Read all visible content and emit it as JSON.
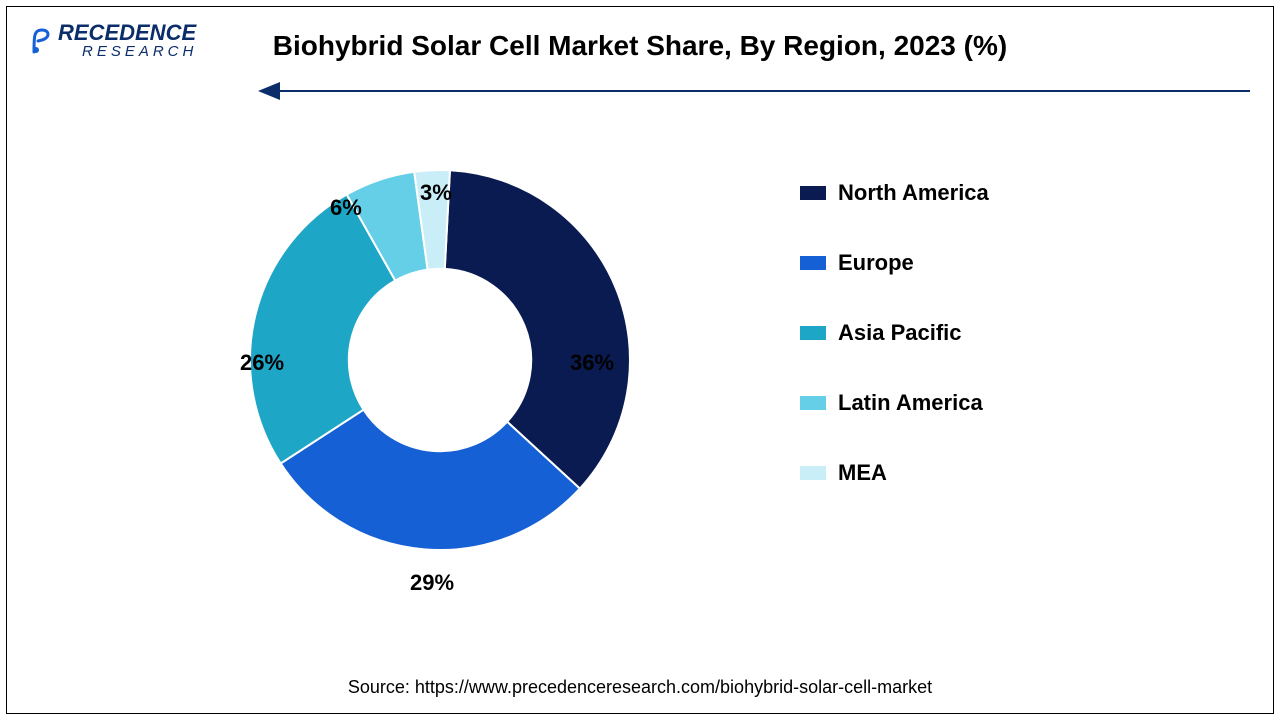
{
  "logo": {
    "main": "RECEDENCE",
    "sub": "RESEARCH",
    "accent_color": "#1560d4"
  },
  "title": "Biohybrid Solar Cell Market Share, By Region, 2023 (%)",
  "arrow_color": "#0b2e6a",
  "chart": {
    "type": "pie",
    "inner_radius_ratio": 0.48,
    "background_color": "#ffffff",
    "slices": [
      {
        "label": "North America",
        "value": 36,
        "color": "#0a1b52",
        "pct_label": "36%"
      },
      {
        "label": "Europe",
        "value": 29,
        "color": "#1560d4",
        "pct_label": "29%"
      },
      {
        "label": "Asia Pacific",
        "value": 26,
        "color": "#1ea6c6",
        "pct_label": "26%"
      },
      {
        "label": "Latin America",
        "value": 6,
        "color": "#65cfe8",
        "pct_label": "6%"
      },
      {
        "label": "MEA",
        "value": 3,
        "color": "#c9eef7",
        "pct_label": "3%"
      }
    ],
    "label_fontsize": 22,
    "label_fontweight": "bold",
    "label_color": "#000000"
  },
  "legend": {
    "fontsize": 22,
    "fontweight": "bold",
    "swatch_width": 26,
    "swatch_height": 14
  },
  "source": "Source: https://www.precedenceresearch.com/biohybrid-solar-cell-market"
}
